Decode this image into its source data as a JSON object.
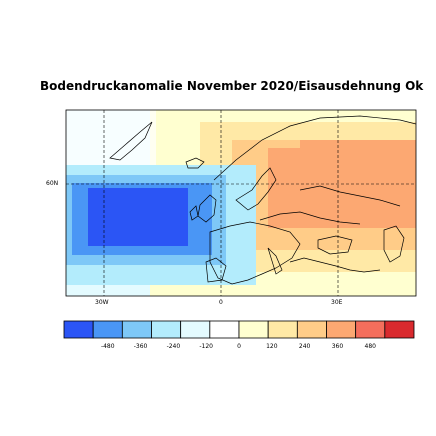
{
  "title": "Bodendruckanomalie November 2020/Eisausdehnung Ok",
  "map": {
    "lat_labels": [
      "60N"
    ],
    "lon_labels": [
      "30W",
      "0",
      "30E"
    ]
  },
  "colorbar": {
    "tick_labels": [
      "-480",
      "-360",
      "-240",
      "-120",
      "0",
      "120",
      "240",
      "360",
      "480"
    ],
    "colors": [
      "#2b55f5",
      "#4a96f5",
      "#7ec8f7",
      "#b3ecfc",
      "#e4fbff",
      "#ffffff",
      "#ffffd0",
      "#ffe9a6",
      "#ffcc88",
      "#fca872",
      "#f46e5c",
      "#d92a2e"
    ]
  }
}
